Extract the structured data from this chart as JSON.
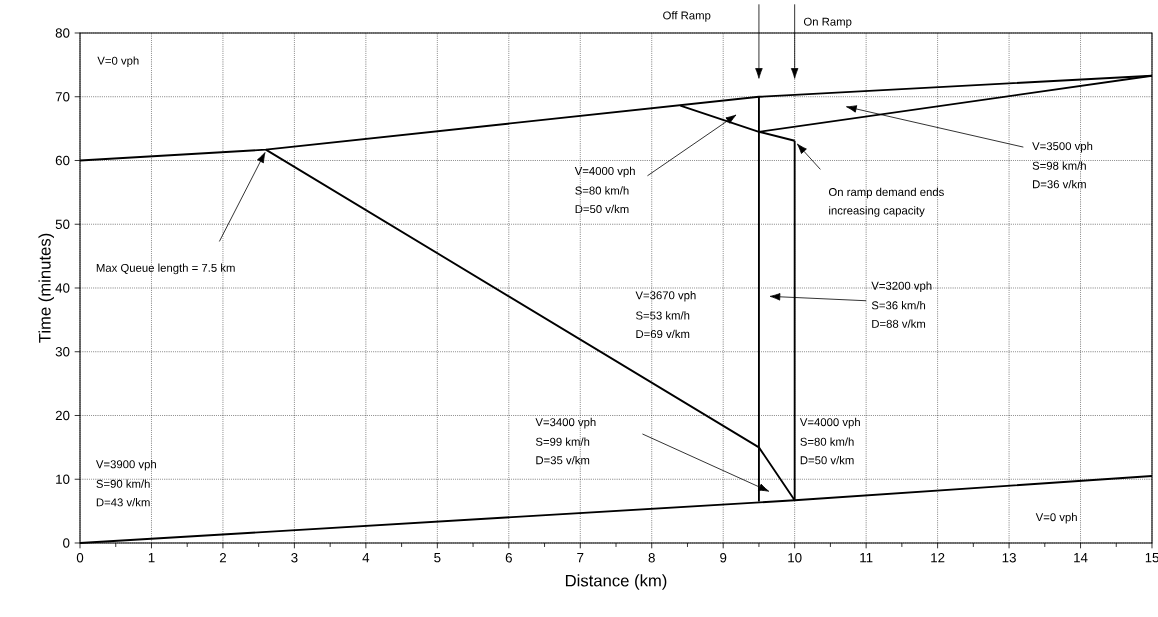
{
  "chart_data": {
    "type": "line",
    "xlabel": "Distance (km)",
    "ylabel": "Time (minutes)",
    "xlim": [
      0,
      15
    ],
    "ylim": [
      0,
      80
    ],
    "xticks": [
      0,
      1,
      2,
      3,
      4,
      5,
      6,
      7,
      8,
      9,
      10,
      11,
      12,
      13,
      14,
      15
    ],
    "yticks": [
      0,
      10,
      20,
      30,
      40,
      50,
      60,
      70,
      80
    ],
    "grid": true,
    "marker": "none",
    "line_style": "solid",
    "series": [
      {
        "color": "#000000",
        "x": [
          0,
          10,
          15
        ],
        "values": [
          0,
          6.7,
          10.5
        ]
      },
      {
        "color": "#000000",
        "x": [
          0,
          2.6,
          9.5,
          15
        ],
        "values": [
          60,
          61.7,
          70,
          73.3
        ]
      },
      {
        "color": "#000000",
        "x": [
          2.6,
          9.5,
          10
        ],
        "values": [
          61.7,
          15.0,
          6.7
        ]
      },
      {
        "color": "#000000",
        "x": [
          9.5,
          9.5
        ],
        "values": [
          6.5,
          70
        ]
      },
      {
        "color": "#000000",
        "x": [
          10,
          10
        ],
        "values": [
          6.7,
          63.1
        ]
      },
      {
        "color": "#000000",
        "x": [
          8.4,
          9.5,
          10
        ],
        "values": [
          68.6,
          64.5,
          63.1
        ]
      },
      {
        "color": "#000000",
        "x": [
          9.5,
          15
        ],
        "values": [
          64.5,
          73.3
        ]
      }
    ],
    "annotations": [
      "V=0 vph",
      "Max Queue length = 7.5 km",
      "V=4000 vph",
      "S=80 km/h",
      "D=50 v/km",
      "V=3500 vph",
      "S=98 km/h",
      "D=36 v/km",
      "On ramp demand ends",
      "increasing capacity",
      "V=3670 vph",
      "S=53 km/h",
      "D=69 v/km",
      "V=3200 vph",
      "S=36 km/h",
      "D=88 v/km",
      "V=3400 vph",
      "S=99 km/h",
      "D=35 v/km",
      "V=4000 vph",
      "S=80 km/h",
      "D=50 v/km",
      "V=3900 vph",
      "S=90 km/h",
      "D=43 v/km",
      "V=0 vph",
      "Off Ramp",
      "On Ramp"
    ]
  }
}
